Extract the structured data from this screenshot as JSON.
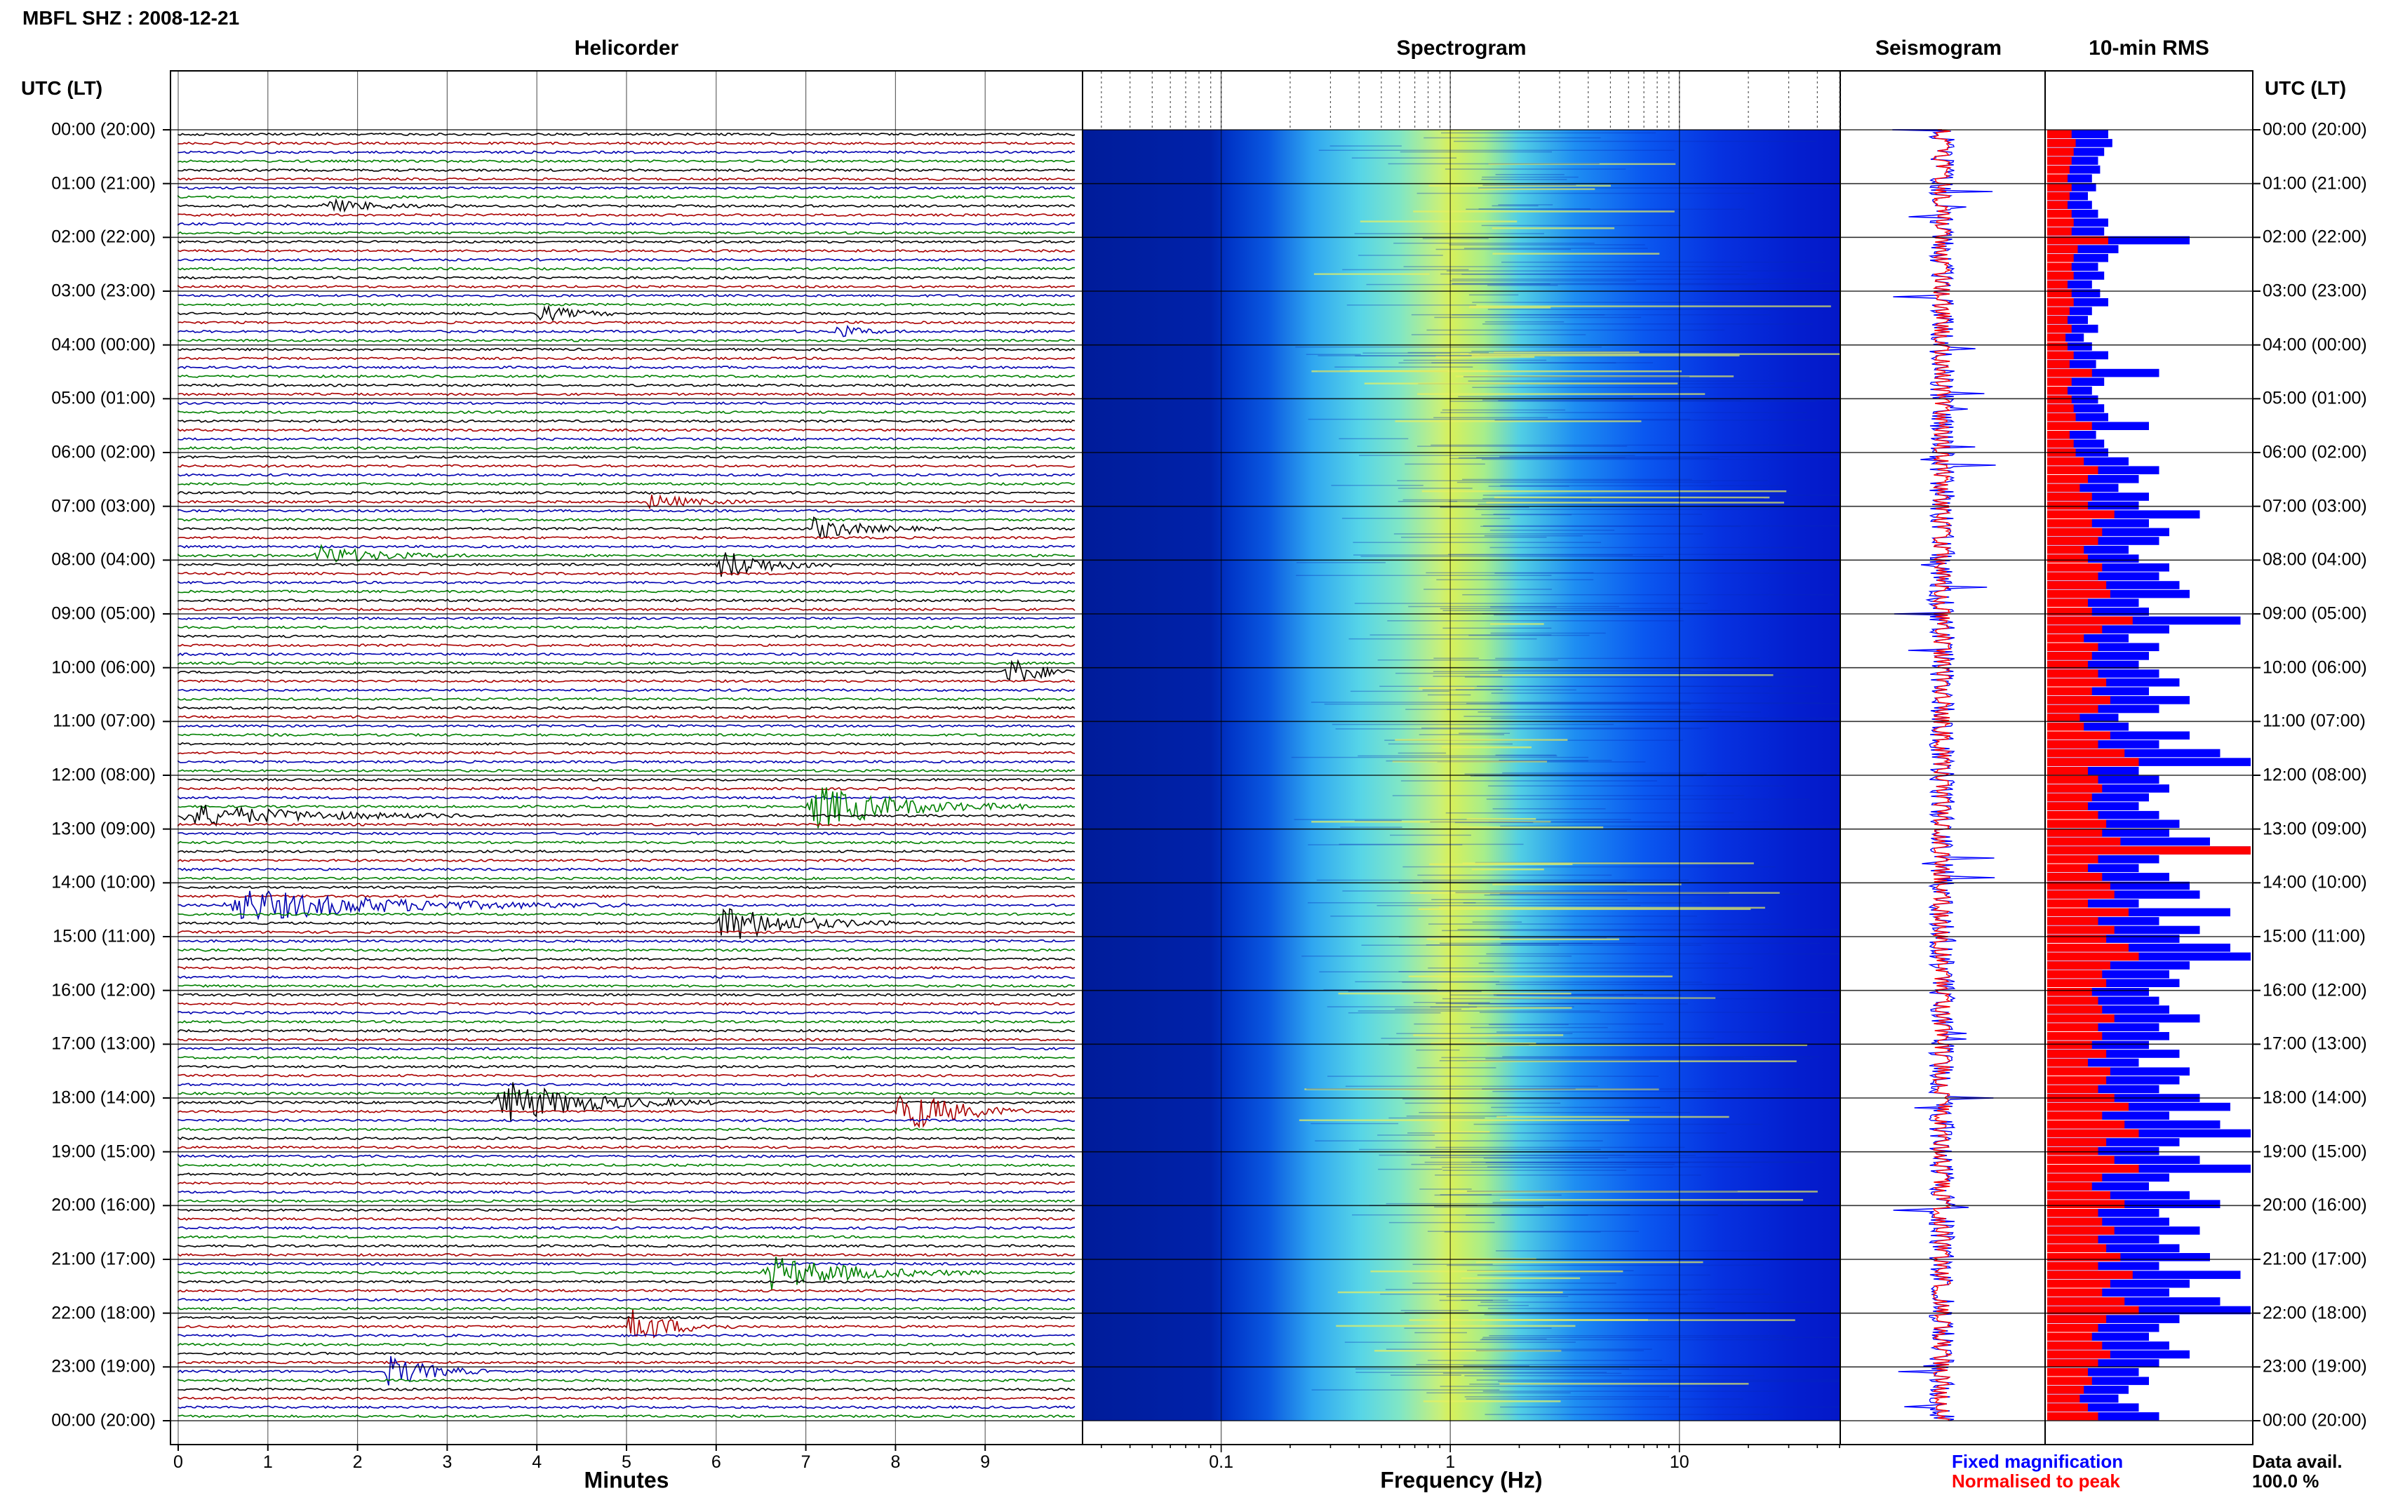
{
  "station_title": "MBFL SHZ : 2008-12-21",
  "panels": {
    "helicorder": "Helicorder",
    "spectrogram": "Spectrogram",
    "seismogram": "Seismogram",
    "rms": "10-min RMS"
  },
  "time_axis_header": "UTC (LT)",
  "time_labels": [
    "00:00 (20:00)",
    "01:00 (21:00)",
    "02:00 (22:00)",
    "03:00 (23:00)",
    "04:00 (00:00)",
    "05:00 (01:00)",
    "06:00 (02:00)",
    "07:00 (03:00)",
    "08:00 (04:00)",
    "09:00 (05:00)",
    "10:00 (06:00)",
    "11:00 (07:00)",
    "12:00 (08:00)",
    "13:00 (09:00)",
    "14:00 (10:00)",
    "15:00 (11:00)",
    "16:00 (12:00)",
    "17:00 (13:00)",
    "18:00 (14:00)",
    "19:00 (15:00)",
    "20:00 (16:00)",
    "21:00 (17:00)",
    "22:00 (18:00)",
    "23:00 (19:00)",
    "00:00 (20:00)"
  ],
  "x_axes": {
    "minutes_label": "Minutes",
    "minutes_ticks": [
      "0",
      "1",
      "2",
      "3",
      "4",
      "5",
      "6",
      "7",
      "8",
      "9"
    ],
    "frequency_label": "Frequency (Hz)",
    "frequency_ticks": [
      "0.1",
      "1",
      "10"
    ]
  },
  "legend": {
    "fixed": "Fixed magnification",
    "normalised": "Normalised to peak",
    "fixed_color": "#0000ff",
    "normalised_color": "#ff0000"
  },
  "data_availability": {
    "label": "Data avail.",
    "value": "100.0 %"
  },
  "colors": {
    "trace_cycle": [
      "#000000",
      "#aa0000",
      "#0000b0",
      "#008000"
    ],
    "rms_blue": "#0000ff",
    "rms_red": "#ff0000",
    "spectrogram_low": "#0000aa",
    "spectrogram_high": "#ffff00"
  },
  "chart_data": [
    {
      "type": "heatmap",
      "title": "Helicorder",
      "xlabel": "Minutes",
      "xlim": [
        0,
        10
      ],
      "rows_per_hour": 6,
      "hours": 24,
      "events": [
        {
          "row": 8,
          "minute": 1.6,
          "duration": 1.5,
          "amp": 0.9
        },
        {
          "row": 20,
          "minute": 4.0,
          "duration": 1.0,
          "amp": 1.2
        },
        {
          "row": 22,
          "minute": 7.3,
          "duration": 0.8,
          "amp": 1.0
        },
        {
          "row": 41,
          "minute": 5.2,
          "duration": 1.2,
          "amp": 1.1
        },
        {
          "row": 44,
          "minute": 7.0,
          "duration": 1.5,
          "amp": 1.6
        },
        {
          "row": 47,
          "minute": 1.5,
          "duration": 1.8,
          "amp": 1.4
        },
        {
          "row": 48,
          "minute": 6.0,
          "duration": 1.5,
          "amp": 2.2
        },
        {
          "row": 60,
          "minute": 9.2,
          "duration": 0.9,
          "amp": 2.4
        },
        {
          "row": 75,
          "minute": 7.0,
          "duration": 2.5,
          "amp": 3.2
        },
        {
          "row": 76,
          "minute": 0.0,
          "duration": 3.5,
          "amp": 1.6
        },
        {
          "row": 86,
          "minute": 0.5,
          "duration": 4.5,
          "amp": 2.4
        },
        {
          "row": 88,
          "minute": 6.0,
          "duration": 2.0,
          "amp": 2.8
        },
        {
          "row": 108,
          "minute": 3.5,
          "duration": 2.5,
          "amp": 3.2
        },
        {
          "row": 109,
          "minute": 8.0,
          "duration": 1.5,
          "amp": 3.6
        },
        {
          "row": 127,
          "minute": 6.5,
          "duration": 2.5,
          "amp": 2.4
        },
        {
          "row": 133,
          "minute": 5.0,
          "duration": 1.2,
          "amp": 2.8
        },
        {
          "row": 138,
          "minute": 2.3,
          "duration": 1.2,
          "amp": 2.4
        }
      ]
    },
    {
      "type": "heatmap",
      "title": "Spectrogram",
      "xlabel": "Frequency (Hz)",
      "x_scale": "log",
      "xlim": [
        0.025,
        50
      ],
      "peak_band_hz": [
        0.5,
        2.0
      ]
    },
    {
      "type": "bar",
      "title": "10-min RMS",
      "orientation": "horizontal",
      "series": [
        {
          "name": "Fixed magnification",
          "values": [
            0.3,
            0.32,
            0.28,
            0.25,
            0.26,
            0.22,
            0.24,
            0.2,
            0.22,
            0.25,
            0.3,
            0.28,
            0.7,
            0.35,
            0.3,
            0.25,
            0.28,
            0.22,
            0.26,
            0.3,
            0.22,
            0.2,
            0.25,
            0.18,
            0.22,
            0.3,
            0.24,
            0.55,
            0.28,
            0.22,
            0.25,
            0.28,
            0.3,
            0.5,
            0.24,
            0.28,
            0.3,
            0.4,
            0.55,
            0.45,
            0.35,
            0.5,
            0.45,
            0.75,
            0.5,
            0.6,
            0.55,
            0.4,
            0.45,
            0.6,
            0.55,
            0.65,
            0.7,
            0.45,
            0.5,
            0.95,
            0.6,
            0.4,
            0.55,
            0.5,
            0.45,
            0.55,
            0.65,
            0.5,
            0.7,
            0.55,
            0.35,
            0.4,
            0.7,
            0.55,
            0.85,
            1.0,
            0.45,
            0.55,
            0.6,
            0.5,
            0.45,
            0.55,
            0.65,
            0.6,
            0.8,
            1.0,
            0.55,
            0.45,
            0.6,
            0.7,
            0.75,
            0.45,
            0.9,
            0.55,
            0.75,
            0.65,
            0.9,
            1.0,
            0.7,
            0.6,
            0.65,
            0.5,
            0.55,
            0.6,
            0.75,
            0.55,
            0.6,
            0.5,
            0.65,
            0.45,
            0.7,
            0.65,
            0.55,
            0.75,
            0.9,
            0.6,
            0.85,
            1.0,
            0.65,
            0.55,
            0.75,
            1.0,
            0.6,
            0.5,
            0.7,
            0.85,
            0.55,
            0.6,
            0.75,
            0.55,
            0.65,
            0.8,
            0.55,
            0.95,
            0.7,
            0.6,
            0.85,
            1.0,
            0.65,
            0.55,
            0.5,
            0.6,
            0.7,
            0.55,
            0.45,
            0.5,
            0.4,
            0.35,
            0.45,
            0.55
          ],
          "color": "#0000ff"
        },
        {
          "name": "Normalised to peak",
          "values": [
            0.12,
            0.14,
            0.13,
            0.12,
            0.11,
            0.1,
            0.12,
            0.11,
            0.1,
            0.12,
            0.13,
            0.12,
            0.3,
            0.15,
            0.13,
            0.12,
            0.13,
            0.1,
            0.12,
            0.13,
            0.11,
            0.1,
            0.12,
            0.09,
            0.1,
            0.13,
            0.11,
            0.22,
            0.12,
            0.1,
            0.12,
            0.13,
            0.14,
            0.22,
            0.11,
            0.13,
            0.14,
            0.18,
            0.25,
            0.2,
            0.16,
            0.22,
            0.2,
            0.33,
            0.22,
            0.27,
            0.25,
            0.18,
            0.2,
            0.27,
            0.25,
            0.29,
            0.31,
            0.2,
            0.22,
            0.42,
            0.27,
            0.18,
            0.25,
            0.22,
            0.2,
            0.25,
            0.29,
            0.22,
            0.31,
            0.25,
            0.16,
            0.18,
            0.31,
            0.25,
            0.38,
            0.45,
            0.2,
            0.25,
            0.27,
            0.22,
            0.2,
            0.25,
            0.29,
            0.27,
            0.36,
            1.0,
            0.25,
            0.2,
            0.27,
            0.31,
            0.33,
            0.2,
            0.4,
            0.25,
            0.33,
            0.29,
            0.4,
            0.45,
            0.31,
            0.27,
            0.29,
            0.22,
            0.25,
            0.27,
            0.33,
            0.25,
            0.27,
            0.22,
            0.29,
            0.2,
            0.31,
            0.29,
            0.25,
            0.33,
            0.4,
            0.27,
            0.38,
            0.45,
            0.29,
            0.25,
            0.33,
            0.45,
            0.27,
            0.22,
            0.31,
            0.38,
            0.25,
            0.27,
            0.33,
            0.25,
            0.29,
            0.36,
            0.25,
            0.42,
            0.31,
            0.27,
            0.38,
            0.45,
            0.29,
            0.25,
            0.22,
            0.27,
            0.31,
            0.25,
            0.2,
            0.22,
            0.18,
            0.16,
            0.2,
            0.25
          ],
          "color": "#ff0000"
        }
      ]
    }
  ]
}
